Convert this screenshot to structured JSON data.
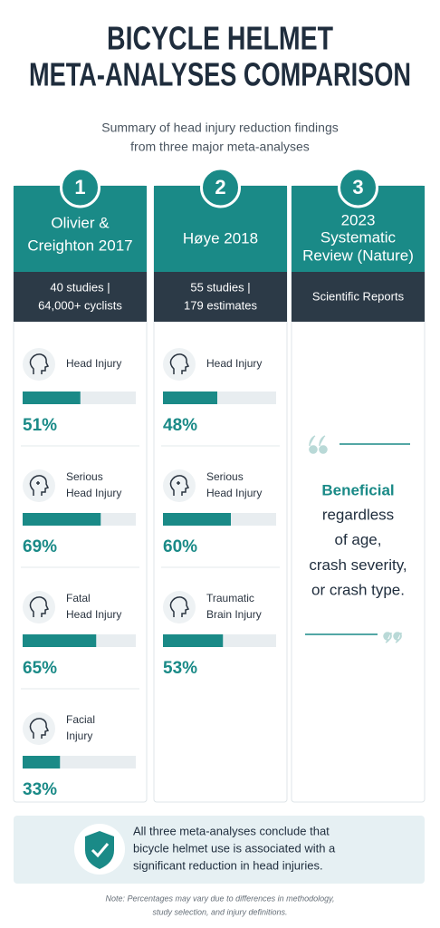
{
  "header": {
    "title_lines": [
      "BICYCLE HELMET",
      "META-ANALYSES COMPARISON"
    ],
    "subtitle_lines": [
      "Summary of head injury reduction findings",
      "from three major meta-analyses"
    ]
  },
  "columns": [
    {
      "number": "1",
      "name_lines": [
        "Olivier &",
        "Creighton 2017"
      ],
      "detail_lines": [
        "40 studies |",
        "64,000+ cyclists"
      ],
      "items": [
        {
          "label_lines": [
            "Head Injury"
          ],
          "value": 51,
          "value_label": "51%"
        },
        {
          "label_lines": [
            "Serious",
            "Head Injury"
          ],
          "value": 69,
          "value_label": "69%"
        },
        {
          "label_lines": [
            "Fatal",
            "Head Injury"
          ],
          "value": 65,
          "value_label": "65%"
        },
        {
          "label_lines": [
            "Facial",
            "Injury"
          ],
          "value": 33,
          "value_label": "33%"
        }
      ]
    },
    {
      "number": "2",
      "name_lines": [
        "Høye 2018"
      ],
      "detail_lines": [
        "55 studies |",
        "179 estimates"
      ],
      "items": [
        {
          "label_lines": [
            "Head Injury"
          ],
          "value": 48,
          "value_label": "48%"
        },
        {
          "label_lines": [
            "Serious",
            "Head Injury"
          ],
          "value": 60,
          "value_label": "60%"
        },
        {
          "label_lines": [
            "Traumatic",
            "Brain Injury"
          ],
          "value": 53,
          "value_label": "53%"
        }
      ]
    },
    {
      "number": "3",
      "name_lines": [
        "2023",
        "Systematic",
        "Review (Nature)"
      ],
      "detail_lines": [
        "Scientific Reports"
      ],
      "quote": {
        "highlight": "Beneficial",
        "lines": [
          "regardless",
          "of age,",
          "crash severity,",
          "or crash type."
        ]
      }
    }
  ],
  "conclusion_lines": [
    "All three meta-analyses conclude that",
    "bicycle helmet use is associated with a",
    "significant reduction in head injuries."
  ],
  "note_lines": [
    "Note: Percentages may vary due to differences in methodology,",
    "study selection, and injury definitions."
  ]
}
